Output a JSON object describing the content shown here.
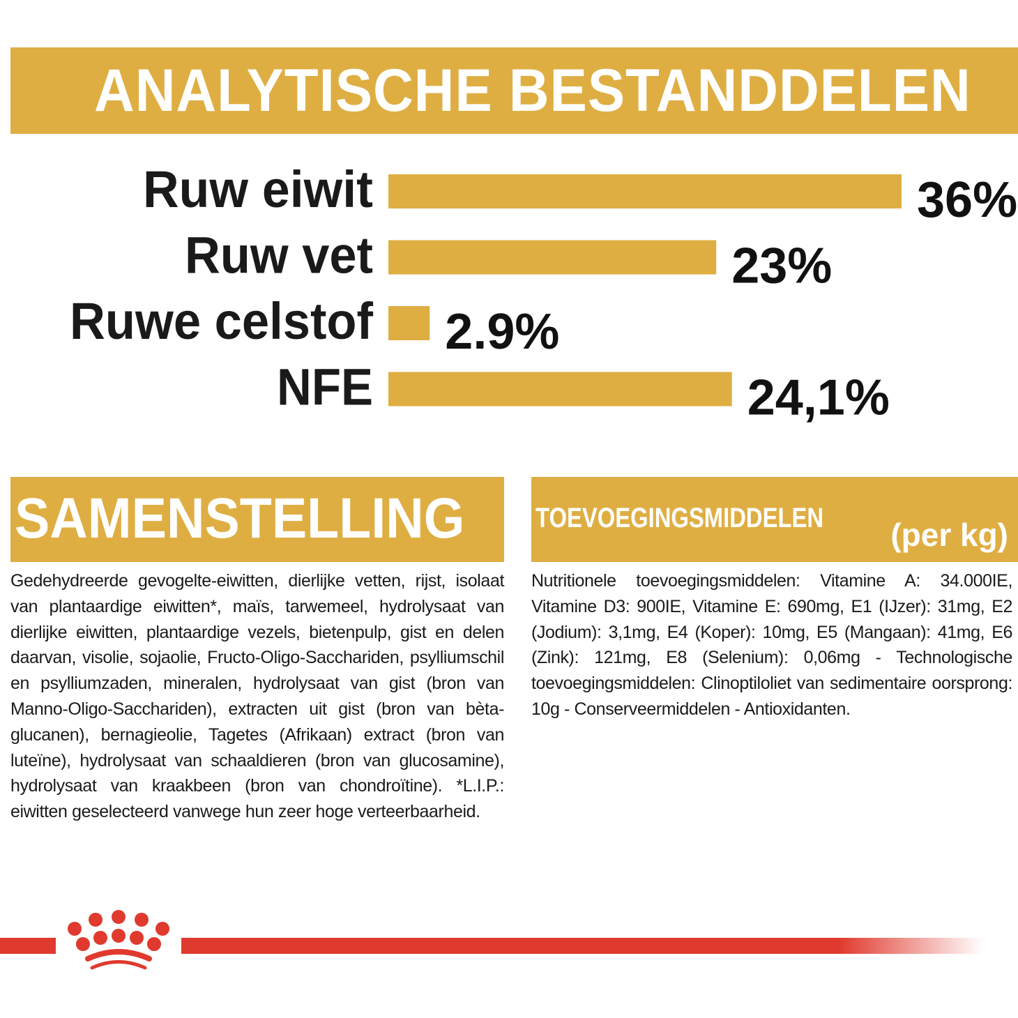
{
  "header": {
    "title": "ANALYTISCHE BESTANDDELEN"
  },
  "colors": {
    "accent": "#dfae42",
    "brand_red": "#e03a2e",
    "text": "#1a1a1a"
  },
  "chart_data": {
    "type": "bar",
    "orientation": "horizontal",
    "categories": [
      "Ruw eiwit",
      "Ruw vet",
      "Ruwe celstof",
      "NFE"
    ],
    "values": [
      36,
      23,
      2.9,
      24.1
    ],
    "data_labels": [
      "36%",
      "23%",
      "2.9%",
      "24,1%"
    ],
    "unit": "%",
    "xlim": [
      0,
      36
    ],
    "grid": false,
    "bar_color": "#dfae42"
  },
  "samenstelling": {
    "title": "SAMENSTELLING",
    "text": "Gedehydreerde gevogelte-eiwitten, dierlijke vetten, rijst, isolaat van plantaardige eiwitten*, maïs, tarwemeel, hydrolysaat van dierlijke eiwitten, plantaardige vezels, bietenpulp, gist en delen daarvan, visolie, sojaolie, Fructo-Oligo-Sacchariden, psylliumschil en psylliumzaden, mineralen, hydrolysaat van gist (bron van Manno-Oligo-Sacchariden), extracten uit gist (bron van bèta-glucanen), bernagieolie, Tagetes (Afrikaan) extract (bron van luteïne), hydrolysaat van schaaldieren (bron van glucosamine), hydrolysaat van kraakbeen (bron van chondroïtine). *L.I.P.: eiwitten geselecteerd vanwege hun zeer hoge verteerbaarheid."
  },
  "toevoegingsmiddelen": {
    "title": "TOEVOEGINGSMIDDELEN",
    "unit": "(per kg)",
    "text": "Nutritionele toevoegingsmiddelen: Vitamine A: 34.000IE, Vitamine D3: 900IE, Vitamine E: 690mg, E1 (IJzer): 31mg, E2 (Jodium): 3,1mg, E4 (Koper): 10mg, E5 (Mangaan): 41mg, E6 (Zink): 121mg, E8 (Selenium): 0,06mg - Technologische toevoegingsmiddelen: Clinoptiloliet van sedimentaire oorsprong: 10g - Conserveermiddelen - Antioxidanten."
  },
  "footer": {
    "logo_icon": "crown-icon"
  }
}
